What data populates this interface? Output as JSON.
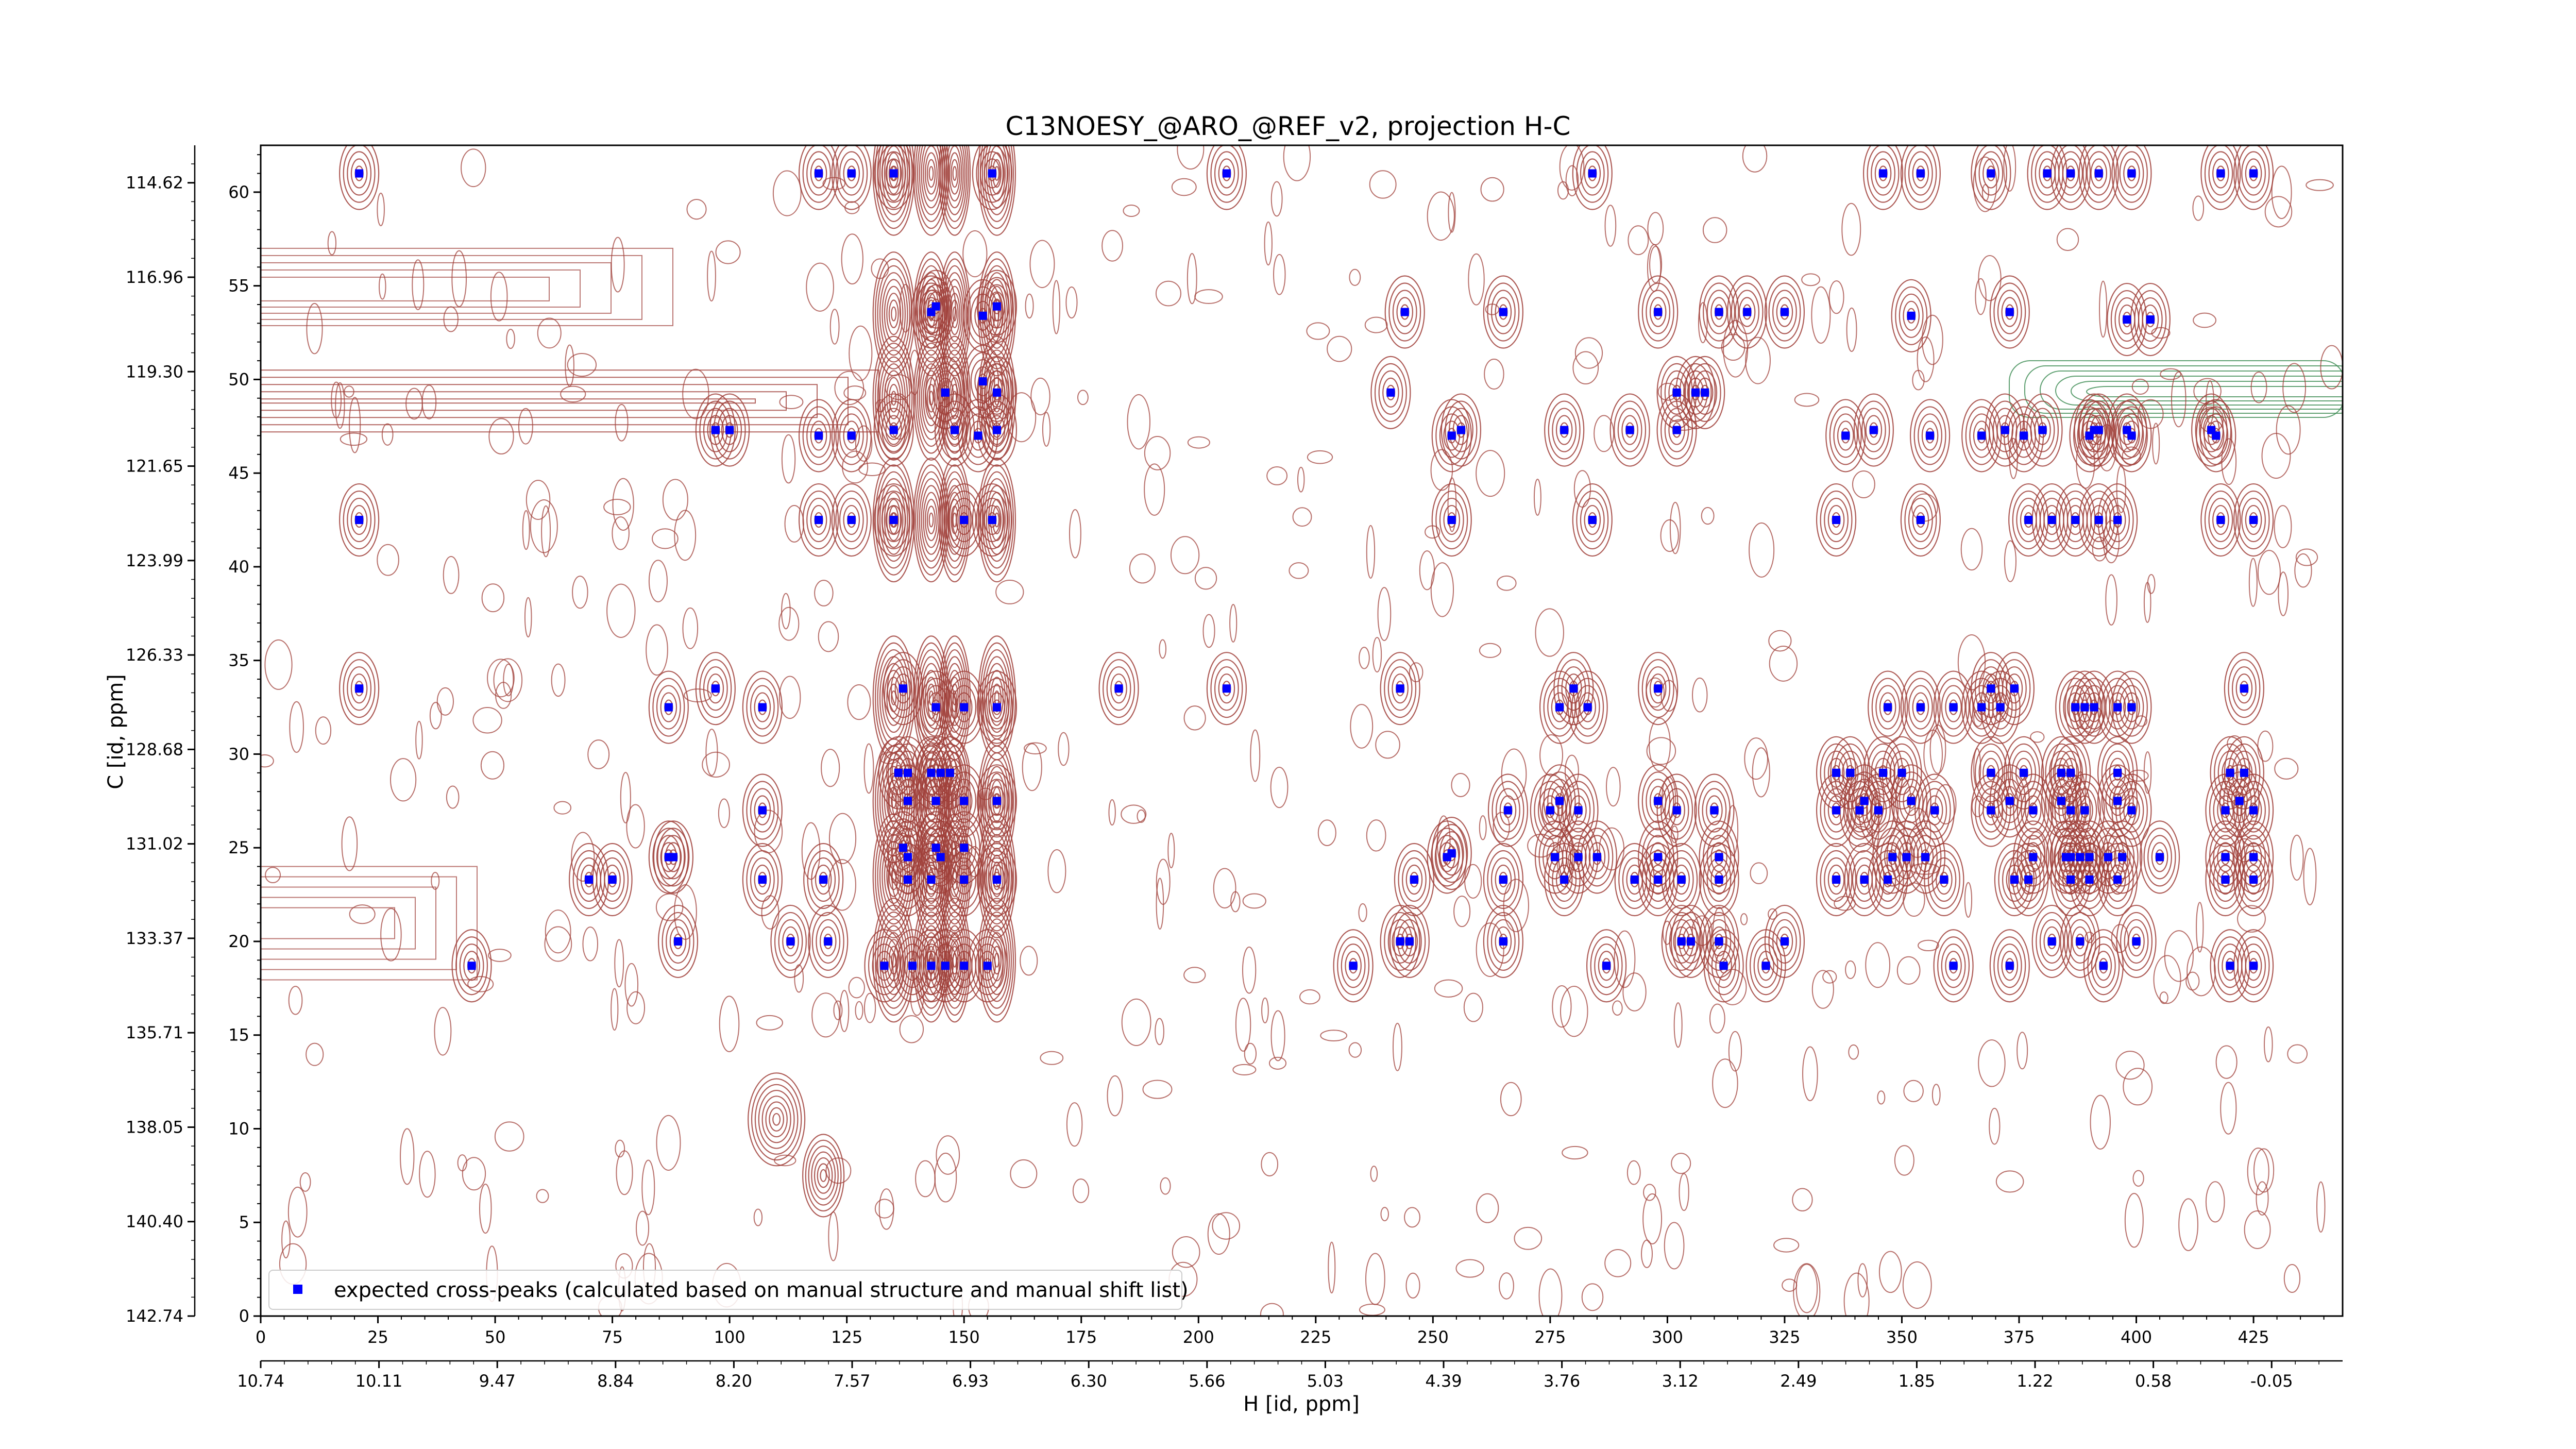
{
  "chart_data": {
    "type": "scatter",
    "title": "C13NOESY_@ARO_@REF_v2, projection H-C",
    "xlabel": "H [id, ppm]",
    "ylabel": "C [id, ppm]",
    "xlim": [
      0,
      444
    ],
    "ylim": [
      0,
      62.5
    ],
    "x_ticks": [
      0,
      25,
      50,
      75,
      100,
      125,
      150,
      175,
      200,
      225,
      250,
      275,
      300,
      325,
      350,
      375,
      400,
      425
    ],
    "y_ticks": [
      0,
      5,
      10,
      15,
      20,
      25,
      30,
      35,
      40,
      45,
      50,
      55,
      60
    ],
    "x_ppm_ticks": [
      "10.74",
      "10.11",
      "9.47",
      "8.84",
      "8.20",
      "7.57",
      "6.93",
      "6.30",
      "5.66",
      "5.03",
      "4.39",
      "3.76",
      "3.12",
      "2.49",
      "1.85",
      "1.22",
      "0.58",
      "-0.05"
    ],
    "y_ppm_ticks": [
      "142.74",
      "140.40",
      "138.05",
      "135.71",
      "133.37",
      "131.02",
      "128.68",
      "126.33",
      "123.99",
      "121.65",
      "119.30",
      "116.96",
      "114.62"
    ],
    "legend": {
      "position": "lower-left",
      "entries": [
        "expected cross-peaks (calculated based on manual structure and manual shift list)"
      ]
    },
    "colors": {
      "marker": "#0000ff",
      "positive_contour": "#a0403a",
      "negative_contour": "#3a8a50"
    },
    "series": [
      {
        "name": "expected cross-peaks (calculated based on manual structure and manual shift list)",
        "points": [
          [
            21,
            61
          ],
          [
            119,
            61
          ],
          [
            126,
            61
          ],
          [
            135,
            61
          ],
          [
            156,
            61
          ],
          [
            206,
            61
          ],
          [
            284,
            61
          ],
          [
            346,
            61
          ],
          [
            354,
            61
          ],
          [
            369,
            61
          ],
          [
            381,
            61
          ],
          [
            386,
            61
          ],
          [
            392,
            61
          ],
          [
            399,
            61
          ],
          [
            418,
            61
          ],
          [
            425,
            61
          ],
          [
            143,
            53.6
          ],
          [
            144,
            53.9
          ],
          [
            154,
            53.4
          ],
          [
            157,
            53.9
          ],
          [
            244,
            53.6
          ],
          [
            265,
            53.6
          ],
          [
            298,
            53.6
          ],
          [
            311,
            53.6
          ],
          [
            317,
            53.6
          ],
          [
            325,
            53.6
          ],
          [
            352,
            53.4
          ],
          [
            373,
            53.6
          ],
          [
            398,
            53.2
          ],
          [
            403,
            53.2
          ],
          [
            146,
            49.3
          ],
          [
            154,
            49.9
          ],
          [
            157,
            49.3
          ],
          [
            241,
            49.3
          ],
          [
            302,
            49.3
          ],
          [
            306,
            49.3
          ],
          [
            308,
            49.3
          ],
          [
            97,
            47.3
          ],
          [
            100,
            47.3
          ],
          [
            119,
            47
          ],
          [
            126,
            47
          ],
          [
            135,
            47.3
          ],
          [
            148,
            47.3
          ],
          [
            153,
            47
          ],
          [
            157,
            47.3
          ],
          [
            254,
            47
          ],
          [
            256,
            47.3
          ],
          [
            278,
            47.3
          ],
          [
            292,
            47.3
          ],
          [
            302,
            47.3
          ],
          [
            338,
            47
          ],
          [
            344,
            47.3
          ],
          [
            356,
            47
          ],
          [
            367,
            47
          ],
          [
            372,
            47.3
          ],
          [
            376,
            47
          ],
          [
            380,
            47.3
          ],
          [
            390,
            47
          ],
          [
            391,
            47.3
          ],
          [
            392,
            47.3
          ],
          [
            398,
            47.3
          ],
          [
            399,
            47
          ],
          [
            416,
            47.3
          ],
          [
            417,
            47
          ],
          [
            21,
            42.5
          ],
          [
            119,
            42.5
          ],
          [
            126,
            42.5
          ],
          [
            135,
            42.5
          ],
          [
            150,
            42.5
          ],
          [
            156,
            42.5
          ],
          [
            254,
            42.5
          ],
          [
            284,
            42.5
          ],
          [
            336,
            42.5
          ],
          [
            354,
            42.5
          ],
          [
            377,
            42.5
          ],
          [
            382,
            42.5
          ],
          [
            387,
            42.5
          ],
          [
            392,
            42.5
          ],
          [
            396,
            42.5
          ],
          [
            418,
            42.5
          ],
          [
            425,
            42.5
          ],
          [
            21,
            33.5
          ],
          [
            87,
            32.5
          ],
          [
            97,
            33.5
          ],
          [
            107,
            32.5
          ],
          [
            137,
            33.5
          ],
          [
            144,
            32.5
          ],
          [
            150,
            32.5
          ],
          [
            157,
            32.5
          ],
          [
            183,
            33.5
          ],
          [
            206,
            33.5
          ],
          [
            243,
            33.5
          ],
          [
            277,
            32.5
          ],
          [
            280,
            33.5
          ],
          [
            283,
            32.5
          ],
          [
            298,
            33.5
          ],
          [
            347,
            32.5
          ],
          [
            354,
            32.5
          ],
          [
            361,
            32.5
          ],
          [
            367,
            32.5
          ],
          [
            369,
            33.5
          ],
          [
            371,
            32.5
          ],
          [
            374,
            33.5
          ],
          [
            387,
            32.5
          ],
          [
            389,
            32.5
          ],
          [
            391,
            32.5
          ],
          [
            396,
            32.5
          ],
          [
            399,
            32.5
          ],
          [
            423,
            33.5
          ],
          [
            136,
            29
          ],
          [
            138,
            29
          ],
          [
            143,
            29
          ],
          [
            145,
            29
          ],
          [
            147,
            29
          ],
          [
            336,
            29
          ],
          [
            339,
            29
          ],
          [
            346,
            29
          ],
          [
            350,
            29
          ],
          [
            369,
            29
          ],
          [
            376,
            29
          ],
          [
            384,
            29
          ],
          [
            386,
            29
          ],
          [
            396,
            29
          ],
          [
            420,
            29
          ],
          [
            423,
            29
          ],
          [
            107,
            27
          ],
          [
            138,
            27.5
          ],
          [
            144,
            27.5
          ],
          [
            150,
            27.5
          ],
          [
            157,
            27.5
          ],
          [
            266,
            27
          ],
          [
            275,
            27
          ],
          [
            277,
            27.5
          ],
          [
            281,
            27
          ],
          [
            298,
            27.5
          ],
          [
            302,
            27
          ],
          [
            310,
            27
          ],
          [
            336,
            27
          ],
          [
            341,
            27
          ],
          [
            342,
            27.5
          ],
          [
            345,
            27
          ],
          [
            352,
            27.5
          ],
          [
            357,
            27
          ],
          [
            369,
            27
          ],
          [
            373,
            27.5
          ],
          [
            378,
            27
          ],
          [
            384,
            27.5
          ],
          [
            386,
            27
          ],
          [
            389,
            27
          ],
          [
            396,
            27.5
          ],
          [
            399,
            27
          ],
          [
            419,
            27
          ],
          [
            422,
            27.5
          ],
          [
            425,
            27
          ],
          [
            87,
            24.5
          ],
          [
            88,
            24.5
          ],
          [
            137,
            25
          ],
          [
            138,
            24.5
          ],
          [
            144,
            25
          ],
          [
            145,
            24.5
          ],
          [
            150,
            25
          ],
          [
            253,
            24.5
          ],
          [
            254,
            24.7
          ],
          [
            276,
            24.5
          ],
          [
            281,
            24.5
          ],
          [
            285,
            24.5
          ],
          [
            298,
            24.5
          ],
          [
            311,
            24.5
          ],
          [
            348,
            24.5
          ],
          [
            351,
            24.5
          ],
          [
            355,
            24.5
          ],
          [
            378,
            24.5
          ],
          [
            385,
            24.5
          ],
          [
            386,
            24.5
          ],
          [
            388,
            24.5
          ],
          [
            390,
            24.5
          ],
          [
            394,
            24.5
          ],
          [
            397,
            24.5
          ],
          [
            405,
            24.5
          ],
          [
            419,
            24.5
          ],
          [
            425,
            24.5
          ],
          [
            70,
            23.3
          ],
          [
            75,
            23.3
          ],
          [
            107,
            23.3
          ],
          [
            120,
            23.3
          ],
          [
            138,
            23.3
          ],
          [
            143,
            23.3
          ],
          [
            150,
            23.3
          ],
          [
            157,
            23.3
          ],
          [
            246,
            23.3
          ],
          [
            265,
            23.3
          ],
          [
            278,
            23.3
          ],
          [
            293,
            23.3
          ],
          [
            298,
            23.3
          ],
          [
            303,
            23.3
          ],
          [
            311,
            23.3
          ],
          [
            336,
            23.3
          ],
          [
            342,
            23.3
          ],
          [
            347,
            23.3
          ],
          [
            359,
            23.3
          ],
          [
            374,
            23.3
          ],
          [
            377,
            23.3
          ],
          [
            386,
            23.3
          ],
          [
            390,
            23.3
          ],
          [
            396,
            23.3
          ],
          [
            419,
            23.3
          ],
          [
            425,
            23.3
          ],
          [
            89,
            20
          ],
          [
            113,
            20
          ],
          [
            121,
            20
          ],
          [
            243,
            20
          ],
          [
            245,
            20
          ],
          [
            265,
            20
          ],
          [
            303,
            20
          ],
          [
            305,
            20
          ],
          [
            311,
            20
          ],
          [
            325,
            20
          ],
          [
            382,
            20
          ],
          [
            388,
            20
          ],
          [
            400,
            20
          ],
          [
            45,
            18.7
          ],
          [
            133,
            18.7
          ],
          [
            139,
            18.7
          ],
          [
            143,
            18.7
          ],
          [
            146,
            18.7
          ],
          [
            150,
            18.7
          ],
          [
            155,
            18.7
          ],
          [
            233,
            18.7
          ],
          [
            287,
            18.7
          ],
          [
            312,
            18.7
          ],
          [
            321,
            18.7
          ],
          [
            361,
            18.7
          ],
          [
            373,
            18.7
          ],
          [
            393,
            18.7
          ],
          [
            420,
            18.7
          ],
          [
            425,
            18.7
          ]
        ]
      }
    ]
  }
}
